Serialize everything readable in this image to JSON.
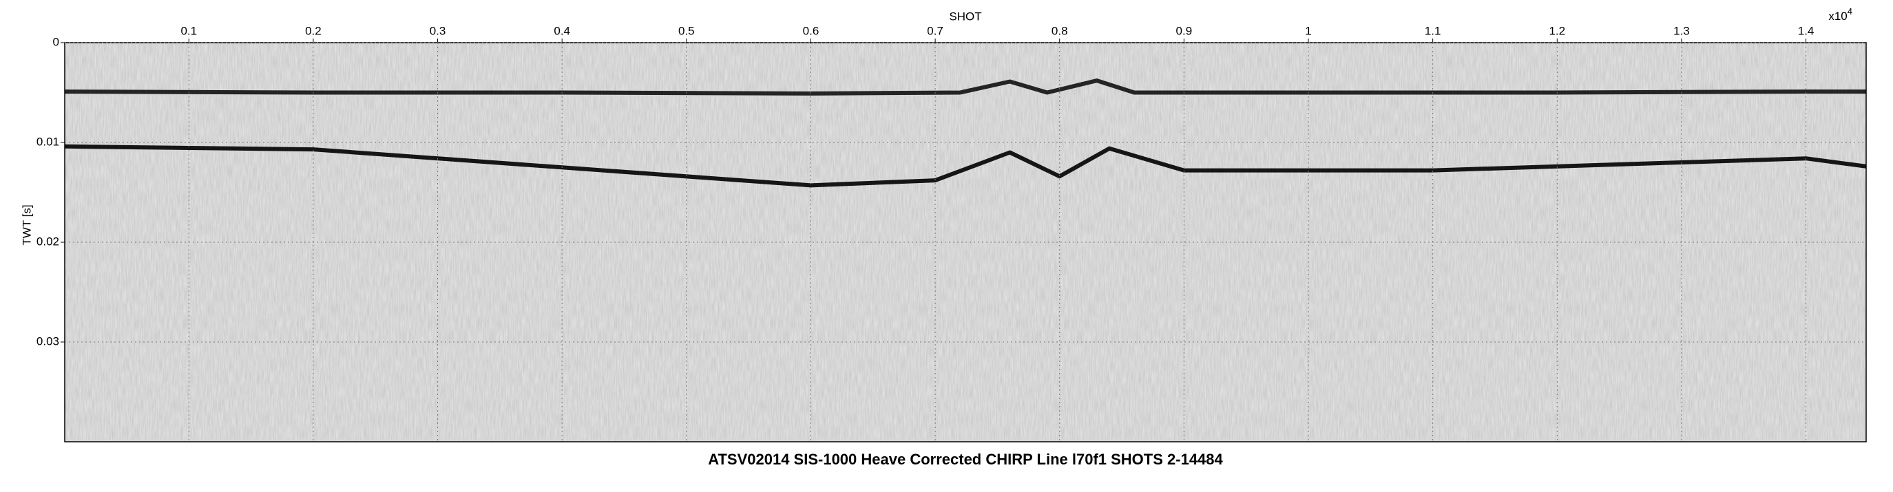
{
  "chart_data": {
    "type": "seismic",
    "title": "ATSV02014 SIS-1000 Heave Corrected CHIRP Line l70f1 SHOTS 2-14484",
    "x_label": "SHOT",
    "x_multiplier": "x10",
    "x_multiplier_exponent": "4",
    "y_label": "TWT [s]",
    "xlim": [
      0.0002,
      1.4484
    ],
    "xticks": [
      0.1,
      0.2,
      0.3,
      0.4,
      0.5,
      0.6,
      0.7,
      0.8,
      0.9,
      1.0,
      1.1,
      1.2,
      1.3,
      1.4
    ],
    "ylim": [
      0,
      0.04
    ],
    "yticks": [
      0,
      0.01,
      0.02,
      0.03
    ],
    "y_inverted": true,
    "grid": true,
    "series": [
      {
        "color": "#111111",
        "x": [
          0.0002,
          0.2,
          0.4,
          0.6,
          0.72,
          0.76,
          0.79,
          0.83,
          0.86,
          1.0,
          1.2,
          1.4,
          1.4484
        ],
        "values": [
          0.0049,
          0.005,
          0.005,
          0.0051,
          0.005,
          0.0039,
          0.005,
          0.0038,
          0.005,
          0.005,
          0.005,
          0.0049,
          0.0049
        ]
      },
      {
        "color": "#000000",
        "x": [
          0.0002,
          0.2,
          0.4,
          0.6,
          0.7,
          0.76,
          0.8,
          0.84,
          0.9,
          1.1,
          1.3,
          1.4,
          1.4484
        ],
        "values": [
          0.0104,
          0.0107,
          0.0125,
          0.0143,
          0.0138,
          0.011,
          0.0134,
          0.0106,
          0.0128,
          0.0128,
          0.012,
          0.0116,
          0.0124
        ]
      }
    ]
  }
}
